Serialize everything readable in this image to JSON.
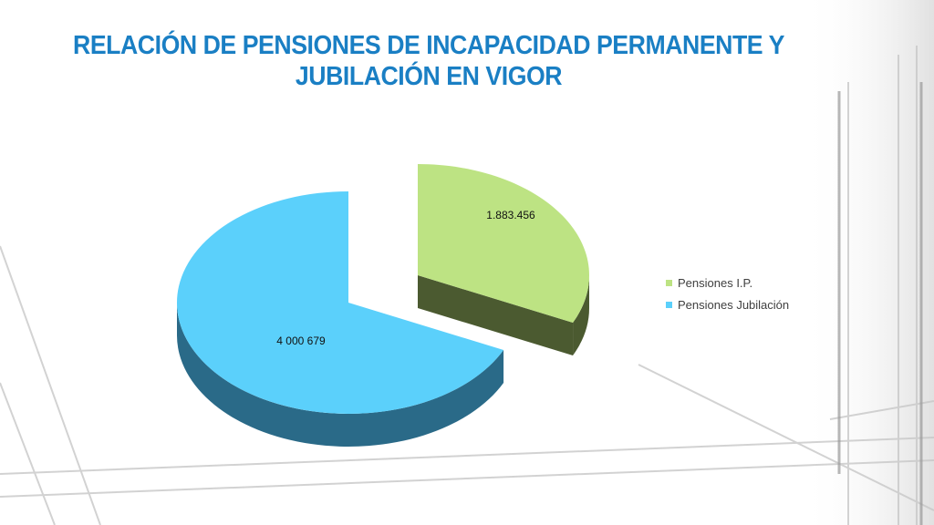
{
  "chart_data": {
    "type": "pie",
    "title": "RELACIÓN DE PENSIONES DE INCAPACIDAD PERMANENTE Y JUBILACIÓN EN VIGOR",
    "title_lines": [
      "RELACIÓN DE PENSIONES DE INCAPACIDAD PERMANENTE Y",
      "JUBILACIÓN EN VIGOR"
    ],
    "three_d": true,
    "exploded": true,
    "legend_position": "right",
    "slices": [
      {
        "name": "Pensiones I.P.",
        "value": 1883456,
        "label": "1.883.456",
        "color": "#bde383",
        "side_color": "#4b5a30"
      },
      {
        "name": "Pensiones Jubilación",
        "value": 4000679,
        "label": "4 000 679",
        "color": "#5bd0fb",
        "side_color": "#2a6a88"
      }
    ]
  }
}
